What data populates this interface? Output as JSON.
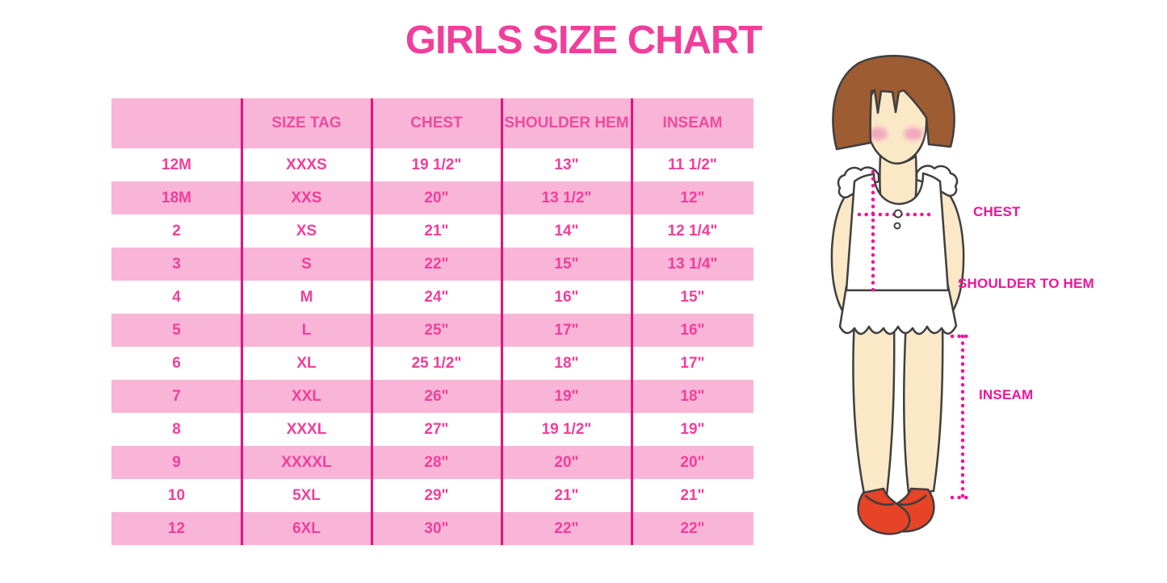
{
  "title": "GIRLS SIZE CHART",
  "colors": {
    "title_pink": "#F23E9B",
    "row_pink": "#F9B5D8",
    "header_text": "#EE4B9F",
    "cell_text": "#F23E9B",
    "grid_line": "#E2137F",
    "label_pink": "#F0149B",
    "hair_brown": "#9E5C33",
    "skin": "#FAE8C6",
    "blush": "#F2A8BD",
    "shirt_white": "#FFFFFF",
    "shoe_red": "#E74327",
    "outline": "#3F3F3F"
  },
  "table": {
    "headers": [
      "",
      "SIZE TAG",
      "CHEST",
      "SHOULDER HEM",
      "INSEAM"
    ],
    "rows": [
      [
        "12M",
        "XXXS",
        "19 1/2\"",
        "13\"",
        "11 1/2\""
      ],
      [
        "18M",
        "XXS",
        "20\"",
        "13 1/2\"",
        "12\""
      ],
      [
        "2",
        "XS",
        "21\"",
        "14\"",
        "12 1/4\""
      ],
      [
        "3",
        "S",
        "22\"",
        "15\"",
        "13 1/4\""
      ],
      [
        "4",
        "M",
        "24\"",
        "16\"",
        "15\""
      ],
      [
        "5",
        "L",
        "25\"",
        "17\"",
        "16\""
      ],
      [
        "6",
        "XL",
        "25 1/2\"",
        "18\"",
        "17\""
      ],
      [
        "7",
        "XXL",
        "26\"",
        "19\"",
        "18\""
      ],
      [
        "8",
        "XXXL",
        "27\"",
        "19 1/2\"",
        "19\""
      ],
      [
        "9",
        "XXXXL",
        "28\"",
        "20\"",
        "20\""
      ],
      [
        "10",
        "5XL",
        "29\"",
        "21\"",
        "21\""
      ],
      [
        "12",
        "6XL",
        "30\"",
        "22\"",
        "22\""
      ]
    ]
  },
  "figure": {
    "labels": {
      "chest": "CHEST",
      "shoulder_to_hem": "SHOULDER TO HEM",
      "inseam": "INSEAM"
    }
  }
}
